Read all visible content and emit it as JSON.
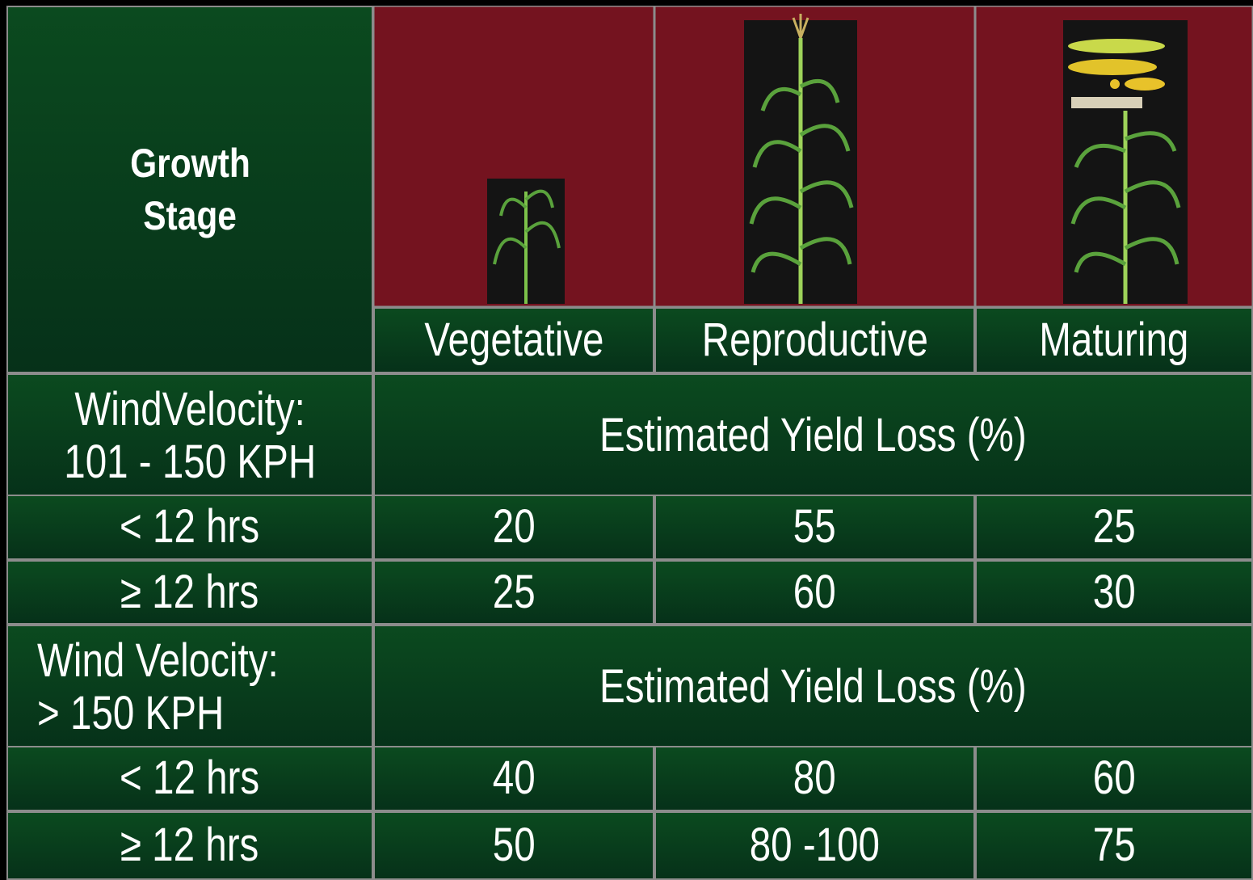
{
  "header": {
    "label_lines": [
      "Growth",
      "Stage"
    ],
    "stages": [
      "Vegetative",
      "Reproductive",
      "Maturing"
    ]
  },
  "sections": [
    {
      "label_lines": [
        "WindVelocity:",
        "101 - 150 KPH"
      ],
      "span_label": "Estimated Yield Loss (%)",
      "rows": [
        {
          "duration": "< 12 hrs",
          "values": [
            20,
            55,
            25
          ]
        },
        {
          "duration": "≥ 12 hrs",
          "values": [
            25,
            60,
            30
          ]
        }
      ]
    },
    {
      "label_lines": [
        "Wind Velocity:",
        "> 150 KPH"
      ],
      "span_label": "Estimated Yield Loss (%)",
      "rows": [
        {
          "duration": "< 12 hrs",
          "values": [
            40,
            80,
            60
          ]
        },
        {
          "duration": "≥ 12 hrs",
          "values": [
            50,
            "80 -100",
            75
          ]
        }
      ]
    }
  ]
}
